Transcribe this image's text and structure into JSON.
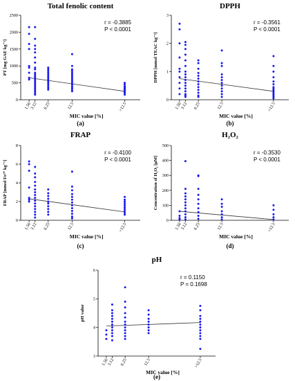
{
  "chart_data": [
    {
      "type": "scatter",
      "title": "Total fenolic content",
      "panel_label": "(a)",
      "ylabel": "PT [mg GAE kg⁻¹]",
      "xlabel": "MIC value [%]",
      "x_ticks": [
        "1.56",
        "3.12",
        "6.25",
        "12.5",
        ">12.5"
      ],
      "ylim": [
        0,
        2500
      ],
      "y_ticks": [
        0,
        500,
        1000,
        1500,
        2000,
        2500
      ],
      "stats": [
        "r = -0.3885",
        "P < 0.0001"
      ],
      "trend": [
        650,
        250
      ],
      "series": [
        {
          "x": "1.56",
          "values": [
            2150,
            1950,
            1650,
            1500,
            1000,
            950,
            800,
            650,
            600
          ]
        },
        {
          "x": "3.12",
          "values": [
            2150,
            1800,
            1600,
            1500,
            1400,
            1250,
            1100,
            950,
            900,
            800,
            750,
            700,
            650,
            600,
            550,
            500,
            450,
            400,
            350,
            300,
            250,
            200,
            150
          ]
        },
        {
          "x": "6.25",
          "values": [
            950,
            900,
            850,
            800,
            750,
            700,
            650,
            600,
            550,
            500,
            450,
            400,
            350,
            300
          ]
        },
        {
          "x": "12.5",
          "values": [
            1350,
            1000,
            900,
            850,
            800,
            750,
            700,
            650,
            600,
            550,
            500,
            450,
            400,
            350,
            300,
            250
          ]
        },
        {
          "x": ">12.5",
          "values": [
            500,
            450,
            400,
            380,
            350,
            320,
            300,
            280,
            250,
            220,
            200,
            150
          ]
        }
      ],
      "marker_color": "#1a1aee",
      "line_color": "#333333"
    },
    {
      "type": "scatter",
      "title": "DPPH",
      "panel_label": "(b)",
      "ylabel": "DPPH [mmol TEAC kg⁻¹]",
      "xlabel": "MIC value [%]",
      "x_ticks": [
        "1.56",
        "3.12",
        "6.25",
        "12.5",
        ">12.5"
      ],
      "ylim": [
        0,
        3
      ],
      "y_ticks": [
        0,
        1,
        2,
        3
      ],
      "stats": [
        "r = -0.3561",
        "P < 0.0001"
      ],
      "trend": [
        0.75,
        0.3
      ],
      "series": [
        {
          "x": "1.56",
          "values": [
            2.7,
            2.5,
            2.0,
            1.5,
            1.1,
            1.0,
            0.8,
            0.6,
            0.4,
            0.2
          ]
        },
        {
          "x": "3.12",
          "values": [
            2.05,
            1.95,
            1.8,
            1.6,
            1.4,
            1.2,
            1.0,
            0.9,
            0.8,
            0.7,
            0.6,
            0.5,
            0.4,
            0.3,
            0.2,
            0.15,
            0.1
          ]
        },
        {
          "x": "6.25",
          "values": [
            1.4,
            1.3,
            1.1,
            0.95,
            0.85,
            0.75,
            0.65,
            0.55,
            0.45,
            0.35,
            0.25,
            0.15,
            0.1
          ]
        },
        {
          "x": "12.5",
          "values": [
            1.75,
            1.3,
            1.2,
            0.9,
            0.8,
            0.7,
            0.6,
            0.5,
            0.4,
            0.3,
            0.2,
            0.1
          ]
        },
        {
          "x": ">12.5",
          "values": [
            1.55,
            1.2,
            1.0,
            0.8,
            0.65,
            0.55,
            0.45,
            0.4,
            0.35,
            0.3,
            0.25,
            0.2,
            0.15,
            0.1,
            0.05
          ]
        }
      ],
      "marker_color": "#1a1aee",
      "line_color": "#333333"
    },
    {
      "type": "scatter",
      "title": "FRAP",
      "panel_label": "(c)",
      "ylabel": "FRAP [mmol Fe²⁺ kg⁻¹]",
      "xlabel": "MIC value [%]",
      "x_ticks": [
        "1.56",
        "3.12",
        "6.25",
        "12.5",
        ">12.5"
      ],
      "ylim": [
        0,
        8
      ],
      "y_ticks": [
        0,
        2,
        4,
        6,
        8
      ],
      "stats": [
        "r = -0.4100",
        "P < 0.0001"
      ],
      "trend": [
        2.3,
        0.9
      ],
      "series": [
        {
          "x": "1.56",
          "values": [
            6.3,
            6.0,
            5.3,
            3.5,
            2.4,
            2.2,
            2.0
          ]
        },
        {
          "x": "3.12",
          "values": [
            5.7,
            5.0,
            4.6,
            4.1,
            3.7,
            3.3,
            3.0,
            2.7,
            2.4,
            2.1,
            1.8,
            1.5,
            1.2,
            0.9,
            0.6,
            0.3
          ]
        },
        {
          "x": "6.25",
          "values": [
            3.3,
            2.9,
            2.6,
            2.3,
            2.0,
            1.8,
            1.5,
            1.2,
            0.9,
            0.6
          ]
        },
        {
          "x": "12.5",
          "values": [
            5.2,
            3.6,
            3.2,
            2.8,
            2.5,
            2.2,
            1.9,
            1.6,
            1.3,
            1.0,
            0.7,
            0.4,
            0.2
          ]
        },
        {
          "x": ">12.5",
          "values": [
            2.5,
            2.2,
            2.0,
            1.8,
            1.6,
            1.4,
            1.2,
            1.0,
            0.8,
            0.6
          ]
        }
      ],
      "marker_color": "#1a1aee",
      "line_color": "#333333"
    },
    {
      "type": "scatter",
      "title": "H₂O₂",
      "panel_label": "(d)",
      "ylabel": "Concentration of H₂O₂ [µM]",
      "xlabel": "MIC  value [%]",
      "x_ticks": [
        "1.56",
        "3.12",
        "6.25",
        "12.5",
        ">12.5"
      ],
      "ylim": [
        0,
        500
      ],
      "y_ticks": [
        0,
        100,
        200,
        300,
        400,
        500
      ],
      "stats": [
        "r = -0.3530",
        "P < 0.0001"
      ],
      "trend": [
        60,
        5
      ],
      "series": [
        {
          "x": "1.56",
          "values": [
            60,
            30,
            15,
            5
          ]
        },
        {
          "x": "3.12",
          "values": [
            395,
            210,
            180,
            160,
            140,
            120,
            100,
            80,
            60,
            40,
            20,
            5
          ]
        },
        {
          "x": "6.25",
          "values": [
            300,
            295,
            210,
            170,
            140,
            110,
            80,
            55,
            30,
            10
          ]
        },
        {
          "x": "12.5",
          "values": [
            140,
            110,
            90,
            60,
            40,
            20,
            5
          ]
        },
        {
          "x": ">12.5",
          "values": [
            100,
            70,
            40,
            20,
            5
          ]
        }
      ],
      "marker_color": "#1a1aee",
      "line_color": "#333333"
    },
    {
      "type": "scatter",
      "title": "pH",
      "panel_label": "(e)",
      "ylabel": "pH value",
      "xlabel": "MIC  value [%]",
      "x_ticks": [
        "1.56",
        "3.12",
        "6.25",
        "12.5",
        ">12.5"
      ],
      "ylim": [
        3,
        6
      ],
      "y_ticks": [
        3,
        4,
        5,
        6
      ],
      "stats": [
        "r = 0.1150",
        "P = 0.1698"
      ],
      "trend": [
        4.05,
        4.17
      ],
      "series": [
        {
          "x": "1.56",
          "values": [
            3.9,
            3.75,
            3.6
          ]
        },
        {
          "x": "3.12",
          "values": [
            4.8,
            4.6,
            4.5,
            4.4,
            4.3,
            4.2,
            4.1,
            4.0,
            3.9,
            3.8,
            3.7,
            3.55
          ]
        },
        {
          "x": "6.25",
          "values": [
            5.4,
            4.9,
            4.7,
            4.5,
            4.35,
            4.2,
            4.1,
            4.0,
            3.9,
            3.8,
            3.7,
            3.6
          ]
        },
        {
          "x": "12.5",
          "values": [
            4.6,
            4.45,
            4.3,
            4.2,
            4.1,
            4.0,
            3.9,
            3.8
          ]
        },
        {
          "x": ">12.5",
          "values": [
            4.75,
            4.6,
            4.4,
            4.3,
            4.2,
            4.1,
            4.0,
            3.9,
            3.8,
            3.7,
            3.6,
            3.25
          ]
        }
      ],
      "marker_color": "#1a1aee",
      "line_color": "#333333"
    }
  ]
}
